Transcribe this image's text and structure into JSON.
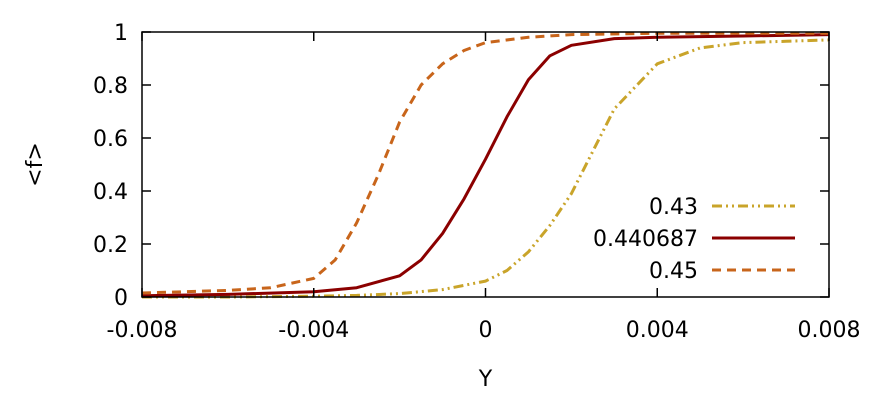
{
  "chart_data": {
    "type": "line",
    "xlabel": "Y",
    "ylabel": "<f>",
    "xlim": [
      -0.008,
      0.008
    ],
    "ylim": [
      0,
      1
    ],
    "x_ticks": [
      "-0.008",
      "-0.004",
      "0",
      "0.004",
      "0.008"
    ],
    "y_ticks": [
      "0",
      "0.2",
      "0.4",
      "0.6",
      "0.8",
      "1"
    ],
    "grid": false,
    "legend_position": "bottom-right",
    "series": [
      {
        "name": "0.43",
        "color": "#c9a42a",
        "dash": "dash-dot-dot",
        "x": [
          -0.008,
          -0.006,
          -0.004,
          -0.003,
          -0.002,
          -0.001,
          0,
          0.0005,
          0.001,
          0.0015,
          0.002,
          0.0025,
          0.003,
          0.004,
          0.005,
          0.006,
          0.007,
          0.008
        ],
        "y": [
          0.0,
          0.0,
          0.003,
          0.006,
          0.013,
          0.028,
          0.06,
          0.1,
          0.17,
          0.27,
          0.39,
          0.55,
          0.71,
          0.88,
          0.94,
          0.96,
          0.965,
          0.97
        ]
      },
      {
        "name": "0.440687",
        "color": "#8b0000",
        "dash": "solid",
        "x": [
          -0.008,
          -0.006,
          -0.004,
          -0.003,
          -0.002,
          -0.0015,
          -0.001,
          -0.0005,
          0,
          0.0005,
          0.001,
          0.0015,
          0.002,
          0.003,
          0.004,
          0.006,
          0.008
        ],
        "y": [
          0.005,
          0.01,
          0.02,
          0.035,
          0.08,
          0.14,
          0.24,
          0.37,
          0.52,
          0.68,
          0.82,
          0.91,
          0.95,
          0.975,
          0.98,
          0.985,
          0.99
        ]
      },
      {
        "name": "0.45",
        "color": "#c8651b",
        "dash": "dashed",
        "x": [
          -0.008,
          -0.006,
          -0.005,
          -0.004,
          -0.0035,
          -0.003,
          -0.0025,
          -0.002,
          -0.0015,
          -0.001,
          -0.0005,
          0,
          0.001,
          0.002,
          0.004,
          0.006,
          0.008
        ],
        "y": [
          0.015,
          0.025,
          0.035,
          0.07,
          0.14,
          0.28,
          0.46,
          0.66,
          0.8,
          0.88,
          0.93,
          0.96,
          0.98,
          0.99,
          0.995,
          0.995,
          0.995
        ]
      }
    ]
  }
}
